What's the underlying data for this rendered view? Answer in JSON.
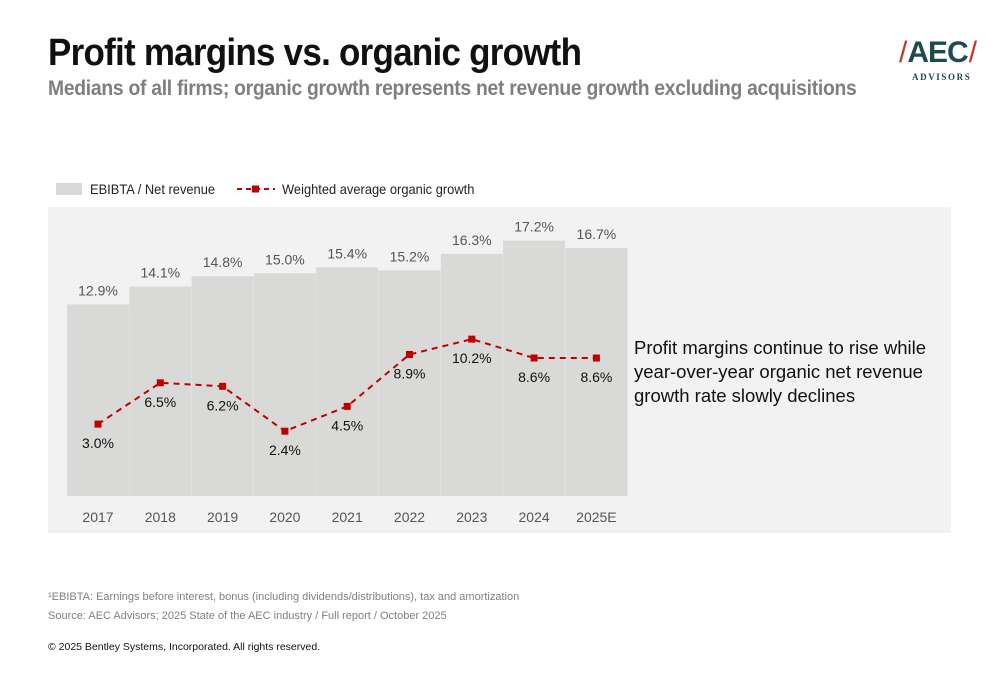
{
  "header": {
    "title": "Profit margins vs. organic growth",
    "subtitle": "Medians of all firms; organic growth represents net revenue growth excluding acquisitions"
  },
  "logo": {
    "mark": "AEC",
    "sub": "ADVISORS"
  },
  "colors": {
    "bar": "#d9d9d8",
    "line": "#c00000",
    "panel": "#f2f2f2"
  },
  "chart_data": {
    "type": "bar",
    "title": "",
    "xlabel": "",
    "ylabel": "",
    "categories": [
      "2017",
      "2018",
      "2019",
      "2020",
      "2021",
      "2022",
      "2023",
      "2024",
      "2025E"
    ],
    "series": [
      {
        "name": "EBIBTA / Net revenue",
        "type": "bar",
        "values": [
          12.9,
          14.1,
          14.8,
          15.0,
          15.4,
          15.2,
          16.3,
          17.2,
          16.7
        ],
        "labels": [
          "12.9%",
          "14.1%",
          "14.8%",
          "15.0%",
          "15.4%",
          "15.2%",
          "16.3%",
          "17.2%",
          "16.7%"
        ]
      },
      {
        "name": "Weighted average organic growth",
        "type": "line",
        "style": "dashed with square markers",
        "values": [
          3.0,
          6.5,
          6.2,
          2.4,
          4.5,
          8.9,
          10.2,
          8.6,
          8.6
        ],
        "labels": [
          "3.0%",
          "6.5%",
          "6.2%",
          "2.4%",
          "4.5%",
          "8.9%",
          "10.2%",
          "8.6%",
          "8.6%"
        ]
      }
    ],
    "legend": {
      "position": "top-left",
      "entries": [
        "EBIBTA / Net revenue",
        "Weighted average organic growth"
      ]
    },
    "grid": false
  },
  "callout": "Profit margins continue to rise while year-over-year organic net revenue growth rate slowly declines",
  "footnotes": {
    "definition": "¹EBIBTA: Earnings before interest, bonus (including dividends/distributions), tax and amortization",
    "source": "Source: AEC Advisors; 2025 State of the AEC industry / Full report / October 2025"
  },
  "copyright": "© 2025 Bentley Systems, Incorporated. All rights reserved."
}
